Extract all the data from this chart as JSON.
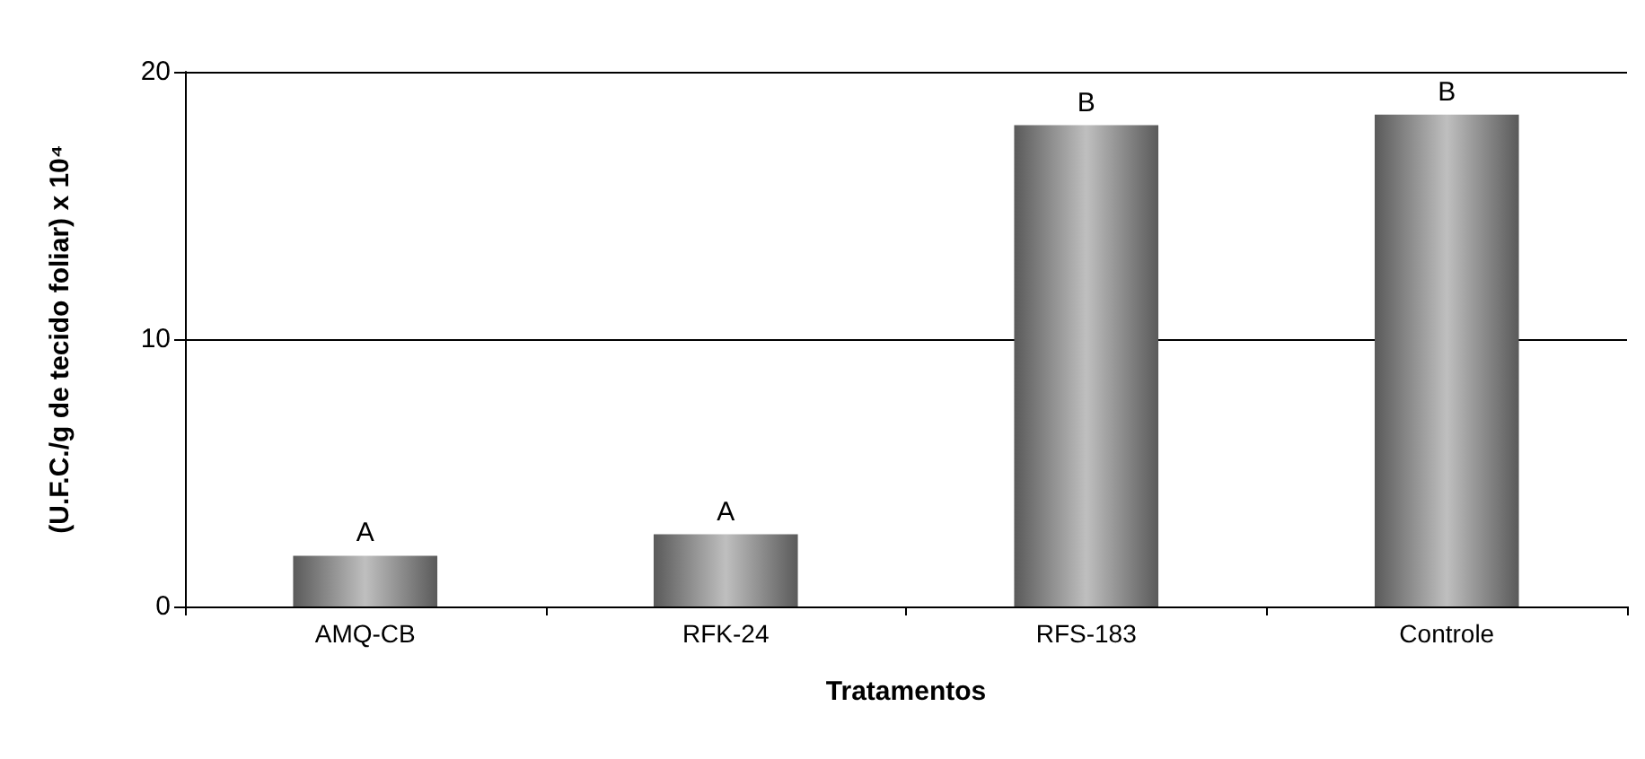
{
  "chart_data": {
    "type": "bar",
    "xlabel": "Tratamentos",
    "ylabel": "(U.F.C./g de tecido foliar) x 10⁴",
    "categories": [
      "AMQ-CB",
      "RFK-24",
      "RFS-183",
      "Controle"
    ],
    "values": [
      1.9,
      2.7,
      18.0,
      18.4
    ],
    "value_labels": [
      "A",
      "A",
      "B",
      "B"
    ],
    "color": "#8a8a8a",
    "ylim": [
      0,
      20
    ],
    "yticks": [
      0,
      10,
      20
    ],
    "grid": "y"
  }
}
